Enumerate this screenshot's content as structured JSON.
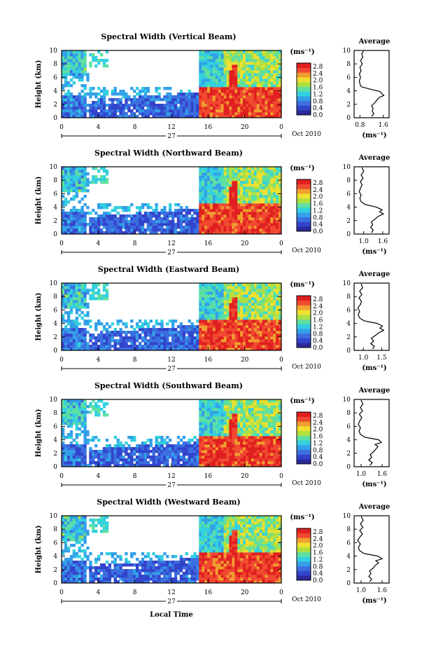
{
  "figure": {
    "xlabel": "Local Time",
    "date_label": "Oct 2010",
    "day_label": "27"
  },
  "colors": {
    "colormap": [
      "#2a2a9a",
      "#3344cc",
      "#3b6fe0",
      "#33a0e8",
      "#33d0e0",
      "#5fe0a0",
      "#b0e040",
      "#f0e030",
      "#f0a030",
      "#f04a30",
      "#e02020"
    ],
    "background": "#ffffff"
  },
  "chart_data": [
    {
      "type": "heatmap",
      "title": "Spectral Width (Vertical Beam)",
      "xlabel": "",
      "ylabel": "Height (km)",
      "x_ticks": [
        "0",
        "4",
        "8",
        "12",
        "16",
        "20",
        "0"
      ],
      "x_range": [
        0,
        24
      ],
      "y_ticks": [
        "0",
        "2",
        "4",
        "6",
        "8",
        "10"
      ],
      "y_range": [
        0,
        10
      ],
      "colorbar": {
        "unit": "(ms⁻¹)",
        "ticks": [
          "0.0",
          "0.4",
          "0.8",
          "1.2",
          "1.6",
          "2.0",
          "2.4",
          "2.8"
        ],
        "range": [
          0,
          3.0
        ]
      },
      "profile": {
        "type": "line",
        "title": "Average",
        "xlabel": "(ms⁻¹)",
        "x_ticks": [
          "0.8",
          "1.6"
        ],
        "x_range": [
          0.6,
          1.8
        ],
        "y_ticks": [
          "0",
          "2",
          "4",
          "6",
          "8",
          "10"
        ],
        "y_range": [
          0,
          10
        ],
        "points": [
          [
            1.2,
            0.2
          ],
          [
            1.28,
            0.6
          ],
          [
            1.22,
            1.0
          ],
          [
            1.25,
            1.4
          ],
          [
            1.2,
            1.8
          ],
          [
            1.3,
            2.2
          ],
          [
            1.38,
            2.6
          ],
          [
            1.45,
            3.0
          ],
          [
            1.62,
            3.3
          ],
          [
            1.55,
            3.6
          ],
          [
            1.48,
            3.9
          ],
          [
            1.1,
            4.3
          ],
          [
            0.85,
            4.6
          ],
          [
            0.8,
            5.0
          ],
          [
            0.78,
            5.5
          ],
          [
            0.82,
            6.0
          ],
          [
            0.78,
            6.5
          ],
          [
            0.84,
            7.0
          ],
          [
            0.8,
            7.5
          ],
          [
            0.88,
            8.0
          ],
          [
            0.82,
            8.5
          ],
          [
            0.9,
            9.0
          ],
          [
            0.86,
            9.5
          ],
          [
            0.92,
            9.9
          ]
        ]
      }
    },
    {
      "type": "heatmap",
      "title": "Spectral Width (Northward Beam)",
      "xlabel": "",
      "ylabel": "Height (km)",
      "x_ticks": [
        "0",
        "4",
        "8",
        "12",
        "16",
        "20",
        "0"
      ],
      "x_range": [
        0,
        24
      ],
      "y_ticks": [
        "0",
        "2",
        "4",
        "6",
        "8",
        "10"
      ],
      "y_range": [
        0,
        10
      ],
      "colorbar": {
        "unit": "(ms⁻¹)",
        "ticks": [
          "0.0",
          "0.4",
          "0.8",
          "1.2",
          "1.6",
          "2.0",
          "2.4",
          "2.8"
        ],
        "range": [
          0,
          3.0
        ]
      },
      "profile": {
        "type": "line",
        "title": "Average",
        "xlabel": "(ms⁻¹)",
        "x_ticks": [
          "1.0",
          "1.6"
        ],
        "x_range": [
          0.7,
          1.8
        ],
        "y_ticks": [
          "0",
          "2",
          "4",
          "6",
          "8",
          "10"
        ],
        "y_range": [
          0,
          10
        ],
        "points": [
          [
            1.25,
            0.2
          ],
          [
            1.3,
            0.6
          ],
          [
            1.22,
            1.0
          ],
          [
            1.28,
            1.4
          ],
          [
            1.24,
            1.8
          ],
          [
            1.35,
            2.2
          ],
          [
            1.45,
            2.6
          ],
          [
            1.62,
            3.0
          ],
          [
            1.5,
            3.3
          ],
          [
            1.58,
            3.6
          ],
          [
            1.4,
            4.0
          ],
          [
            1.05,
            4.4
          ],
          [
            0.92,
            4.8
          ],
          [
            0.88,
            5.3
          ],
          [
            0.92,
            5.8
          ],
          [
            0.86,
            6.3
          ],
          [
            0.9,
            6.8
          ],
          [
            0.95,
            7.3
          ],
          [
            0.9,
            7.8
          ],
          [
            0.98,
            8.3
          ],
          [
            0.92,
            8.8
          ],
          [
            1.0,
            9.3
          ],
          [
            0.95,
            9.9
          ]
        ]
      }
    },
    {
      "type": "heatmap",
      "title": "Spectral Width (Eastward Beam)",
      "xlabel": "",
      "ylabel": "Height (km)",
      "x_ticks": [
        "0",
        "4",
        "8",
        "12",
        "16",
        "20",
        "0"
      ],
      "x_range": [
        0,
        24
      ],
      "y_ticks": [
        "0",
        "2",
        "4",
        "6",
        "8",
        "10"
      ],
      "y_range": [
        0,
        10
      ],
      "colorbar": {
        "unit": "(ms⁻¹)",
        "ticks": [
          "0.0",
          "0.4",
          "0.8",
          "1.2",
          "1.6",
          "2.0",
          "2.4",
          "2.8"
        ],
        "range": [
          0,
          3.0
        ]
      },
      "profile": {
        "type": "line",
        "title": "Average",
        "xlabel": "(ms⁻¹)",
        "x_ticks": [
          "1.0",
          "1.5"
        ],
        "x_range": [
          0.75,
          1.7
        ],
        "y_ticks": [
          "0",
          "2",
          "4",
          "6",
          "8",
          "10"
        ],
        "y_range": [
          0,
          10
        ],
        "points": [
          [
            1.25,
            0.2
          ],
          [
            1.3,
            0.6
          ],
          [
            1.2,
            1.0
          ],
          [
            1.28,
            1.4
          ],
          [
            1.22,
            1.8
          ],
          [
            1.32,
            2.2
          ],
          [
            1.42,
            2.6
          ],
          [
            1.55,
            3.0
          ],
          [
            1.45,
            3.3
          ],
          [
            1.52,
            3.6
          ],
          [
            1.38,
            4.0
          ],
          [
            1.02,
            4.4
          ],
          [
            0.9,
            4.8
          ],
          [
            0.86,
            5.3
          ],
          [
            0.9,
            5.8
          ],
          [
            0.85,
            6.3
          ],
          [
            0.92,
            6.8
          ],
          [
            0.95,
            7.3
          ],
          [
            0.88,
            7.8
          ],
          [
            0.96,
            8.3
          ],
          [
            0.9,
            8.8
          ],
          [
            0.98,
            9.3
          ],
          [
            0.94,
            9.9
          ]
        ]
      }
    },
    {
      "type": "heatmap",
      "title": "Spectral Width (Southward Beam)",
      "xlabel": "",
      "ylabel": "Height (km)",
      "x_ticks": [
        "0",
        "4",
        "8",
        "12",
        "16",
        "20",
        "0"
      ],
      "x_range": [
        0,
        24
      ],
      "y_ticks": [
        "0",
        "2",
        "4",
        "6",
        "8",
        "10"
      ],
      "y_range": [
        0,
        10
      ],
      "colorbar": {
        "unit": "(ms⁻¹)",
        "ticks": [
          "0.0",
          "0.4",
          "0.8",
          "1.2",
          "1.6",
          "2.0",
          "2.4",
          "2.8"
        ],
        "range": [
          0,
          3.0
        ]
      },
      "profile": {
        "type": "line",
        "title": "Average",
        "xlabel": "(ms⁻¹)",
        "x_ticks": [
          "1.0",
          "1.6"
        ],
        "x_range": [
          0.8,
          1.8
        ],
        "y_ticks": [
          "0",
          "2",
          "4",
          "6",
          "8",
          "10"
        ],
        "y_range": [
          0,
          10
        ],
        "points": [
          [
            1.25,
            0.2
          ],
          [
            1.32,
            0.6
          ],
          [
            1.22,
            1.0
          ],
          [
            1.3,
            1.4
          ],
          [
            1.26,
            1.8
          ],
          [
            1.35,
            2.2
          ],
          [
            1.42,
            2.6
          ],
          [
            1.48,
            3.0
          ],
          [
            1.4,
            3.3
          ],
          [
            1.58,
            3.6
          ],
          [
            1.5,
            4.0
          ],
          [
            1.1,
            4.4
          ],
          [
            0.98,
            4.8
          ],
          [
            0.94,
            5.3
          ],
          [
            0.98,
            5.8
          ],
          [
            0.92,
            6.3
          ],
          [
            0.96,
            6.8
          ],
          [
            1.02,
            7.3
          ],
          [
            0.95,
            7.8
          ],
          [
            1.04,
            8.3
          ],
          [
            0.98,
            8.8
          ],
          [
            1.05,
            9.3
          ],
          [
            1.0,
            9.9
          ]
        ]
      }
    },
    {
      "type": "heatmap",
      "title": "Spectral Width (Westward Beam)",
      "xlabel": "",
      "ylabel": "Height (km)",
      "x_ticks": [
        "0",
        "4",
        "8",
        "12",
        "16",
        "20",
        "0"
      ],
      "x_range": [
        0,
        24
      ],
      "y_ticks": [
        "0",
        "2",
        "4",
        "6",
        "8",
        "10"
      ],
      "y_range": [
        0,
        10
      ],
      "colorbar": {
        "unit": "(ms⁻¹)",
        "ticks": [
          "0.0",
          "0.4",
          "0.8",
          "1.2",
          "1.6",
          "2.0",
          "2.4",
          "2.8"
        ],
        "range": [
          0,
          3.0
        ]
      },
      "profile": {
        "type": "line",
        "title": "Average",
        "xlabel": "(ms⁻¹)",
        "x_ticks": [
          "1.0",
          "1.6"
        ],
        "x_range": [
          0.8,
          1.8
        ],
        "y_ticks": [
          "0",
          "2",
          "4",
          "6",
          "8",
          "10"
        ],
        "y_range": [
          0,
          10
        ],
        "points": [
          [
            1.25,
            0.2
          ],
          [
            1.3,
            0.6
          ],
          [
            1.22,
            1.0
          ],
          [
            1.28,
            1.4
          ],
          [
            1.24,
            1.8
          ],
          [
            1.34,
            2.2
          ],
          [
            1.4,
            2.6
          ],
          [
            1.5,
            3.0
          ],
          [
            1.42,
            3.3
          ],
          [
            1.6,
            3.6
          ],
          [
            1.48,
            4.0
          ],
          [
            1.08,
            4.4
          ],
          [
            0.96,
            4.8
          ],
          [
            0.92,
            5.3
          ],
          [
            0.98,
            5.8
          ],
          [
            0.9,
            6.3
          ],
          [
            0.96,
            6.8
          ],
          [
            1.04,
            7.3
          ],
          [
            0.96,
            7.8
          ],
          [
            1.05,
            8.3
          ],
          [
            0.98,
            8.8
          ],
          [
            1.06,
            9.3
          ],
          [
            1.0,
            9.9
          ]
        ]
      }
    }
  ]
}
